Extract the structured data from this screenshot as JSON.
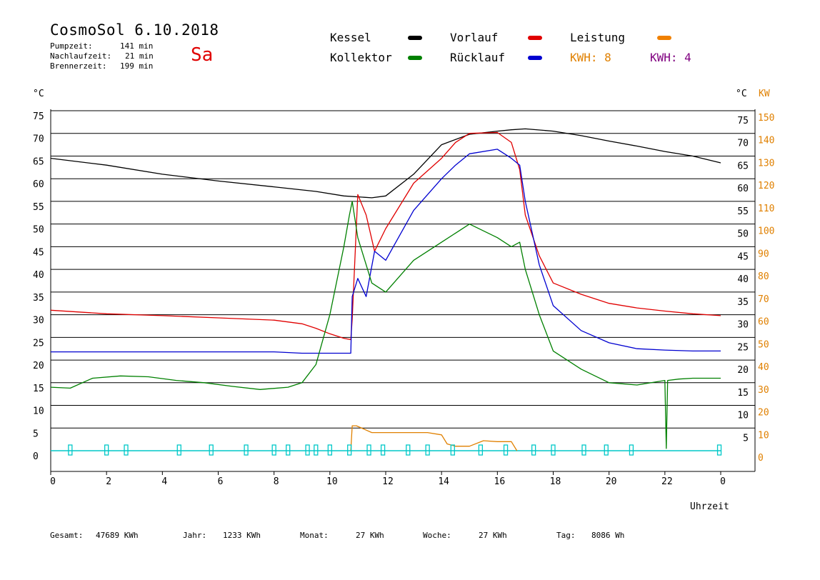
{
  "header": {
    "title": "CosmoSol 6.10.2018",
    "stats": [
      {
        "label": "Pumpzeit:",
        "value": "141 min"
      },
      {
        "label": "Nachlaufzeit:",
        "value": "21 min"
      },
      {
        "label": "Brennerzeit:",
        "value": "199 min"
      }
    ],
    "day": "Sa"
  },
  "legend": {
    "kessel": {
      "label": "Kessel",
      "color": "#000000"
    },
    "vorlauf": {
      "label": "Vorlauf",
      "color": "#e00000"
    },
    "leistung": {
      "label": "Leistung",
      "color": "#f08000"
    },
    "kollektor": {
      "label": "Kollektor",
      "color": "#008000"
    },
    "ruecklauf": {
      "label": "Rücklauf",
      "color": "#0000d0"
    },
    "kwh1": {
      "label": "KWH: 8",
      "color": "#e08000"
    },
    "kwh2": {
      "label": "KWH: 4",
      "color": "#800080"
    }
  },
  "axes": {
    "left_unit": "°C",
    "right_unit_c": "°C",
    "right_unit_kw": "KW",
    "xlabel": "Uhrzeit"
  },
  "footer": {
    "gesamt_label": "Gesamt:",
    "gesamt_value": "47689 KWh",
    "jahr_label": "Jahr:",
    "jahr_value": "1233 KWh",
    "monat_label": "Monat:",
    "monat_value": "27 KWh",
    "woche_label": "Woche:",
    "woche_value": "27 KWh",
    "tag_label": "Tag:",
    "tag_value": "8086 Wh"
  },
  "chart_data": {
    "type": "line",
    "title": "CosmoSol 6.10.2018",
    "xlabel": "Uhrzeit",
    "ylabel": "°C",
    "y2label": "KW",
    "xlim": [
      0,
      24
    ],
    "ylim": [
      0,
      75
    ],
    "y2lim": [
      0,
      150
    ],
    "x_ticks": [
      "0",
      "2",
      "4",
      "6",
      "8",
      "10",
      "12",
      "14",
      "16",
      "18",
      "20",
      "22",
      "0"
    ],
    "y_ticks_left": [
      0,
      5,
      10,
      15,
      20,
      25,
      30,
      35,
      40,
      45,
      50,
      55,
      60,
      65,
      70,
      75
    ],
    "y_ticks_right_c": [
      5,
      10,
      15,
      20,
      25,
      30,
      35,
      40,
      45,
      50,
      55,
      60,
      65,
      70,
      75
    ],
    "y_ticks_right_kw": [
      0,
      10,
      20,
      30,
      40,
      50,
      60,
      70,
      80,
      90,
      100,
      110,
      120,
      130,
      140,
      150
    ],
    "grid": true,
    "series": [
      {
        "name": "Kessel",
        "color": "#000000",
        "x": [
          0,
          2,
          4,
          6,
          8,
          9.5,
          10.5,
          11.5,
          12,
          13,
          14,
          15,
          16,
          16.5,
          17,
          18,
          19,
          20,
          21,
          22,
          23,
          24
        ],
        "y": [
          64.5,
          63,
          61,
          59.5,
          58.2,
          57.2,
          56.2,
          55.8,
          56.2,
          61,
          67.5,
          69.8,
          70.5,
          70.8,
          71,
          70.5,
          69.5,
          68.3,
          67.2,
          66,
          65,
          63.5
        ]
      },
      {
        "name": "Vorlauf",
        "color": "#e00000",
        "x": [
          0,
          2,
          4,
          6,
          8,
          9,
          9.5,
          10,
          10.5,
          10.75,
          10.8,
          11,
          11.3,
          11.6,
          12,
          13,
          14,
          14.5,
          15,
          16,
          16.5,
          16.8,
          17,
          17.5,
          18,
          19,
          20,
          21,
          22,
          23,
          24
        ],
        "y": [
          31,
          30.2,
          29.8,
          29.3,
          28.8,
          28,
          27,
          25.8,
          24.8,
          24.5,
          29,
          56.5,
          52,
          44,
          49,
          59,
          64.5,
          68,
          70,
          70.2,
          68,
          62,
          52,
          43,
          37,
          34.5,
          32.5,
          31.5,
          30.8,
          30.2,
          29.8
        ]
      },
      {
        "name": "Rücklauf",
        "color": "#0000d0",
        "x": [
          0,
          2,
          4,
          6,
          8,
          9,
          10,
          10.75,
          10.8,
          11,
          11.3,
          11.6,
          12,
          13,
          14,
          14.5,
          15,
          16,
          16.5,
          16.8,
          17,
          17.5,
          18,
          19,
          20,
          21,
          22,
          23,
          24
        ],
        "y": [
          21.8,
          21.8,
          21.8,
          21.8,
          21.8,
          21.5,
          21.5,
          21.5,
          34,
          38,
          34,
          44,
          42,
          53,
          60,
          63,
          65.5,
          66.5,
          64.5,
          63,
          55,
          41,
          32,
          26.5,
          23.8,
          22.5,
          22.2,
          22,
          22
        ]
      },
      {
        "name": "Kollektor",
        "color": "#008000",
        "x": [
          0,
          0.7,
          1.5,
          2.5,
          3.5,
          4.5,
          5.5,
          6.5,
          7.5,
          8.5,
          9,
          9.5,
          10,
          10.5,
          10.7,
          10.8,
          11,
          11.5,
          12,
          13,
          14,
          14.5,
          15,
          16,
          16.5,
          16.8,
          17,
          17.5,
          18,
          18.5,
          19,
          19.5,
          20,
          21,
          22,
          22.05,
          22.1,
          22.5,
          23,
          24
        ],
        "y": [
          14,
          13.8,
          16,
          16.5,
          16.3,
          15.5,
          15,
          14.2,
          13.5,
          14,
          15,
          19,
          30,
          45,
          52,
          55,
          47,
          37,
          35,
          42,
          46,
          48,
          50,
          47,
          45,
          46,
          40,
          30,
          22,
          20,
          18,
          16.5,
          15,
          14.5,
          15.5,
          0.5,
          15.5,
          15.8,
          16,
          16
        ]
      },
      {
        "name": "Leistung",
        "color": "#e08000",
        "x": [
          10.75,
          10.8,
          10.95,
          11.5,
          12,
          12.5,
          13,
          13.5,
          14,
          14.2,
          14.5,
          15,
          15.5,
          16,
          16.5,
          16.7
        ],
        "y": [
          0,
          5.5,
          5.5,
          4,
          4,
          4,
          4,
          4,
          3.5,
          1.5,
          1,
          1,
          2.2,
          2,
          2,
          0
        ]
      },
      {
        "name": "Pumpe",
        "color": "#00c8c8",
        "x": [
          0.7,
          2.0,
          2.7,
          4.6,
          5.75,
          7.0,
          8.0,
          8.5,
          9.2,
          9.5,
          10.0,
          10.7,
          11.4,
          11.9,
          12.8,
          13.5,
          14.4,
          15.4,
          16.3,
          17.3,
          18.0,
          19.1,
          19.9,
          20.8,
          23.95
        ],
        "y": [
          0,
          0,
          0,
          0,
          0,
          0,
          0,
          0,
          0,
          0,
          0,
          0,
          0,
          0,
          0,
          0,
          0,
          0,
          0,
          0,
          0,
          0,
          0,
          0,
          0
        ]
      }
    ]
  }
}
